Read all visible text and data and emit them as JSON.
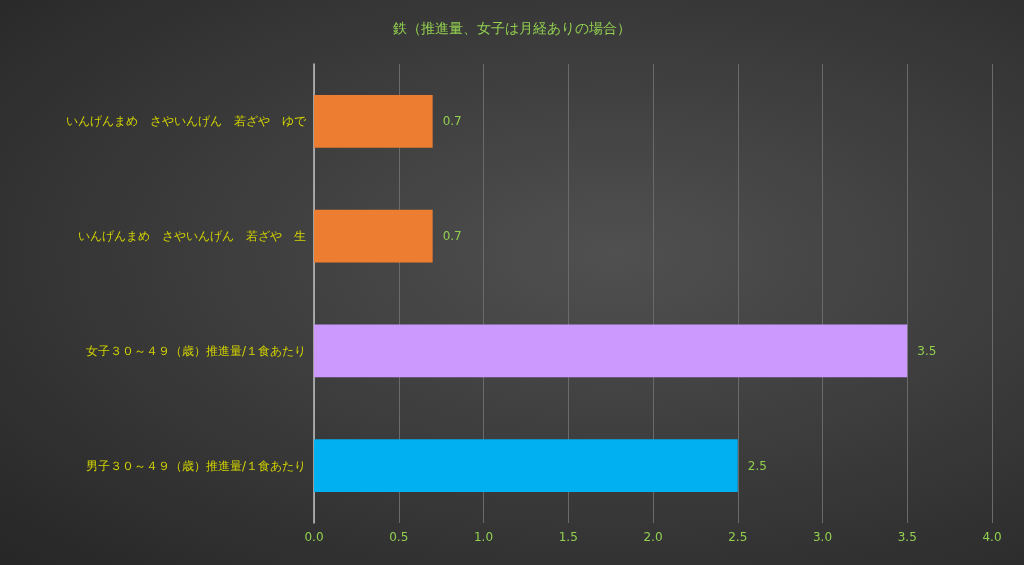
{
  "chart_data": {
    "type": "bar",
    "orientation": "horizontal",
    "title": "鉄（推進量、女子は月経ありの場合）",
    "categories": [
      "いんげんまめ　さやいんげん　若ざや　ゆで",
      "いんげんまめ　さやいんげん　若ざや　生",
      "女子３０～４９（歳）推進量/１食あたり",
      "男子３０～４９（歳）推進量/１食あたり"
    ],
    "values": [
      0.7,
      0.7,
      3.5,
      2.5
    ],
    "colors": [
      "#ed7d31",
      "#ed7d31",
      "#cc99ff",
      "#00b0f0"
    ],
    "xlim": [
      0,
      4
    ],
    "xticks": [
      {
        "value": 0,
        "label": "0.0"
      },
      0.5,
      {
        "value": 1,
        "label": "1.0"
      },
      1.5,
      {
        "value": 2,
        "label": "2.0"
      },
      2.5,
      {
        "value": 3,
        "label": "3.0"
      },
      3.5,
      {
        "value": 4,
        "label": "4.0"
      }
    ],
    "grid": "x",
    "data_labels": true
  }
}
